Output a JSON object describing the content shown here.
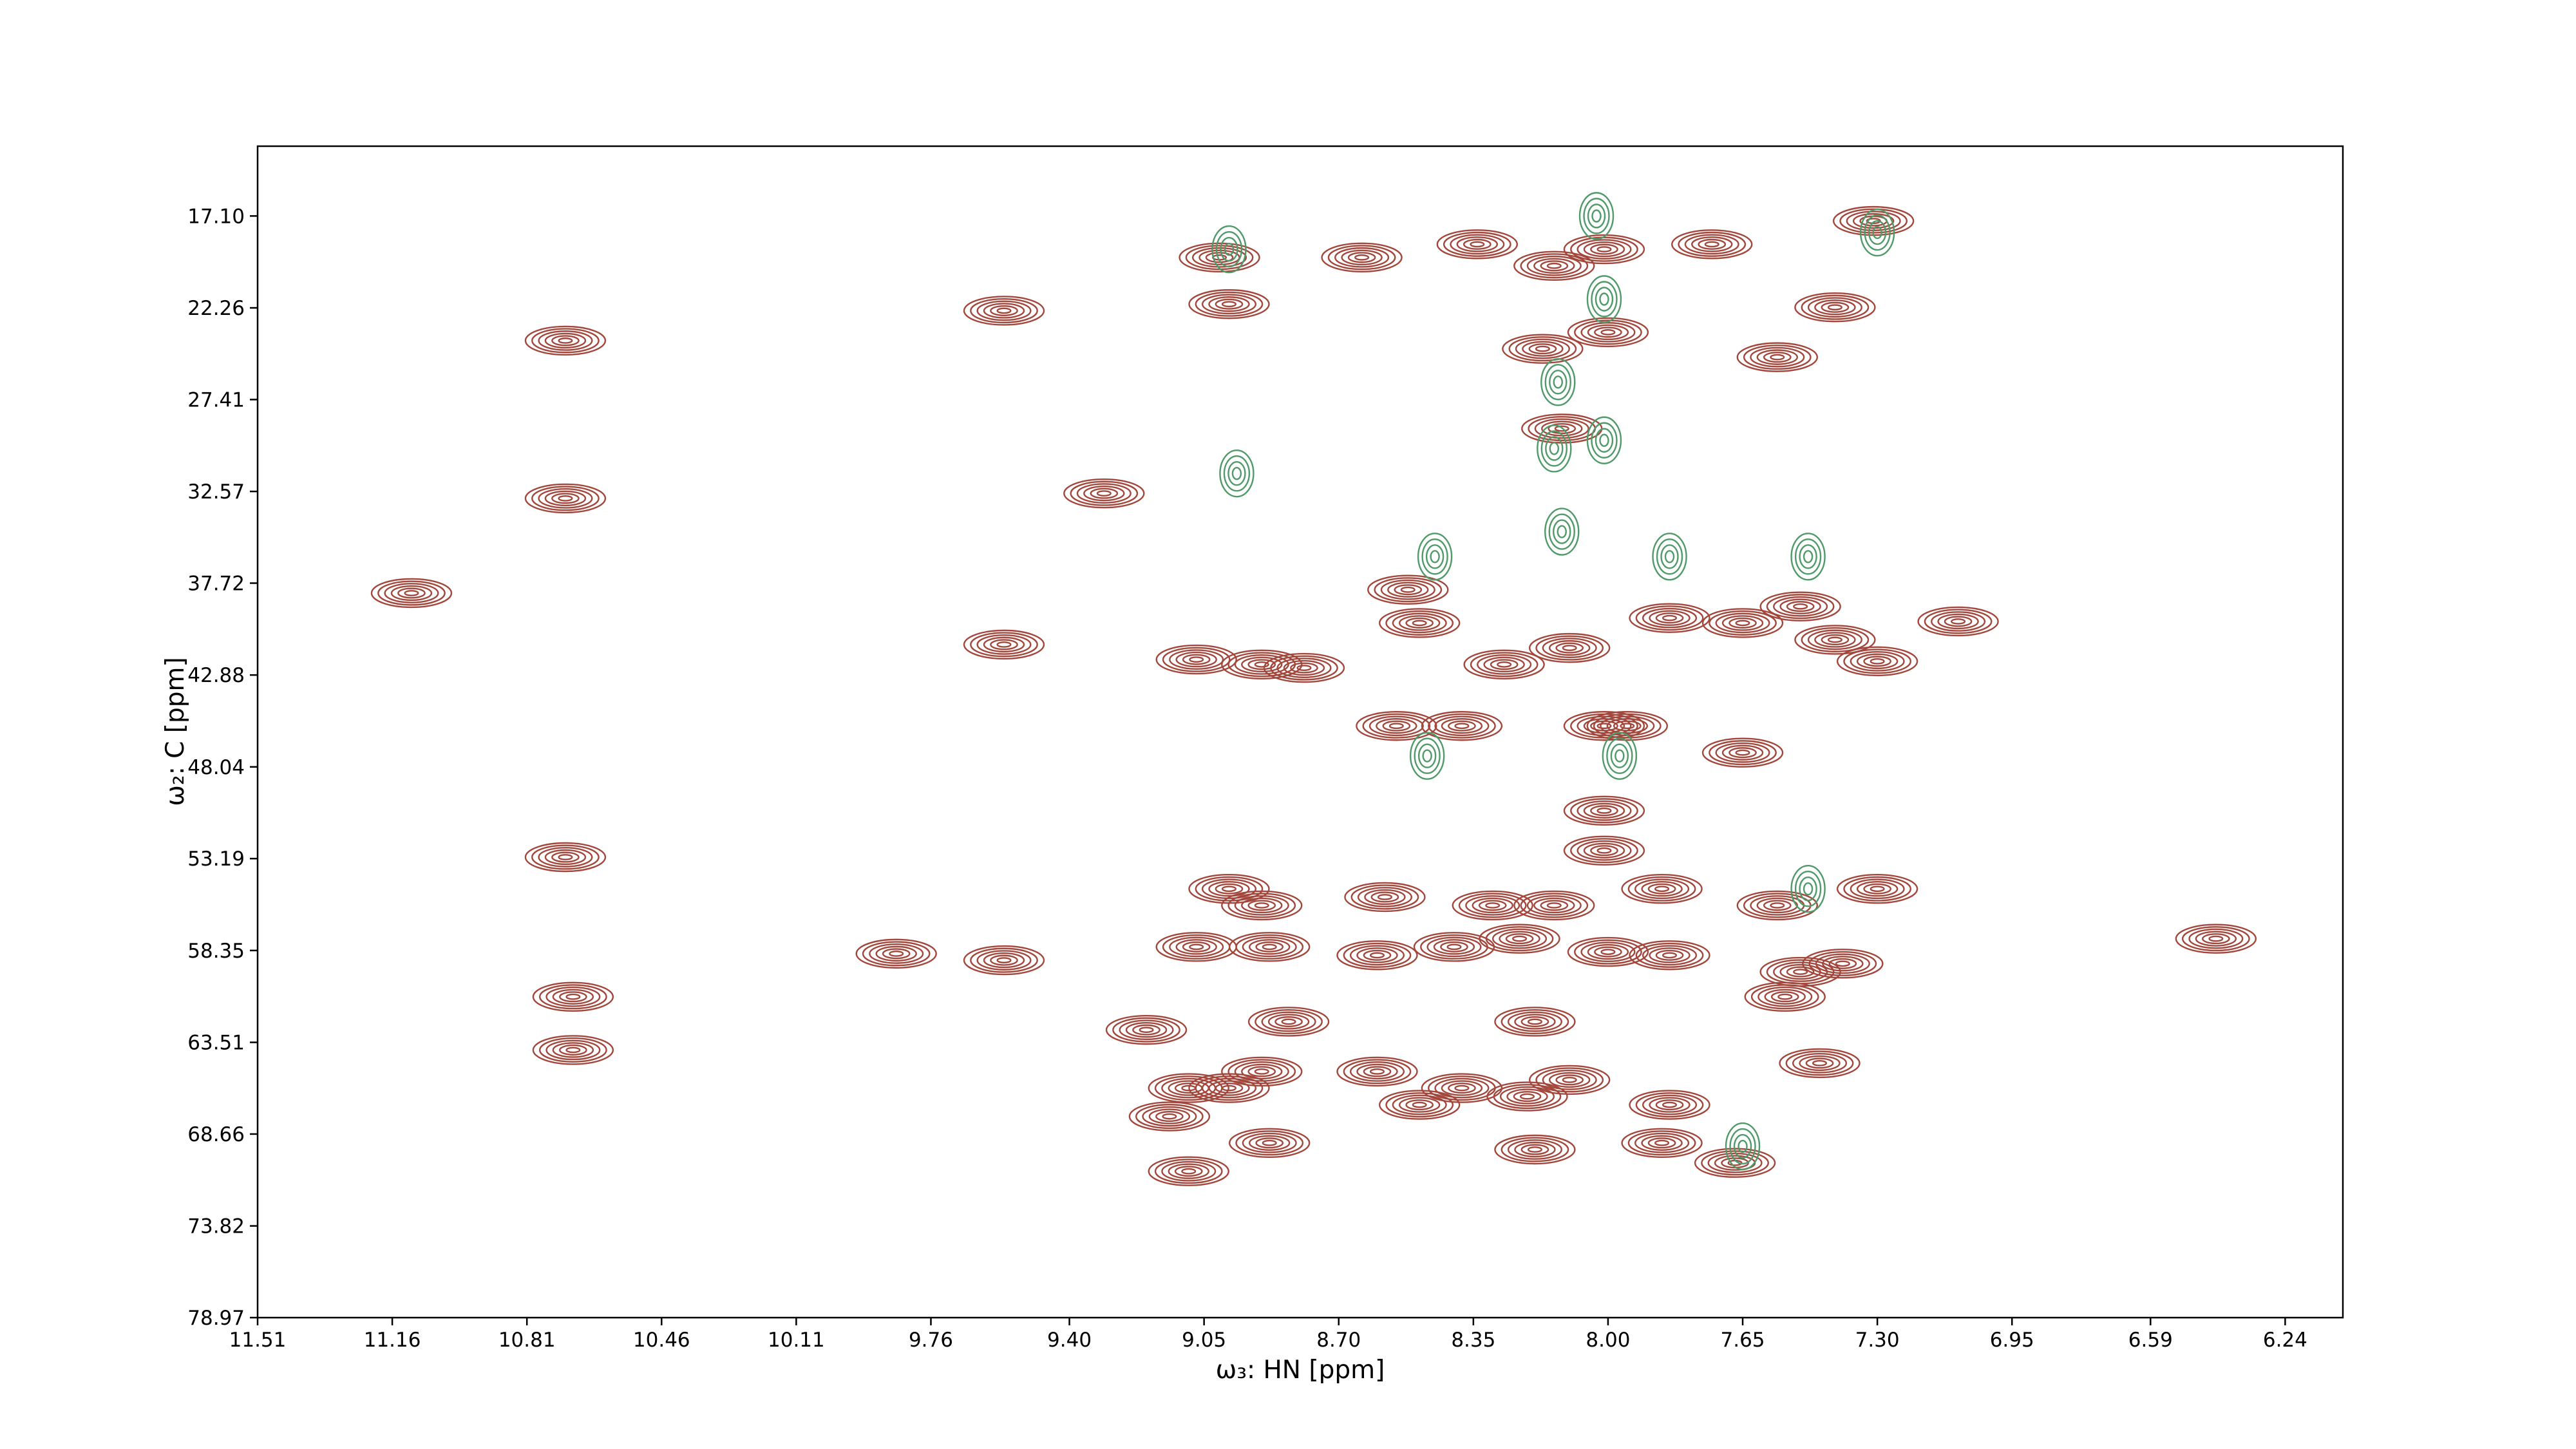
{
  "chart_data": {
    "type": "contour",
    "x_label": "ω₃: HN [ppm]",
    "y_label": "ω₂: C [ppm]",
    "xlim": [
      11.51,
      6.09
    ],
    "ylim": [
      78.97,
      13.18
    ],
    "xticks": [
      11.51,
      11.16,
      10.81,
      10.46,
      10.11,
      9.76,
      {
        "value": 9.4,
        "label": "9.40"
      },
      9.05,
      {
        "value": 8.7,
        "label": "8.70"
      },
      8.35,
      {
        "value": 8.0,
        "label": "8.00"
      },
      7.65,
      {
        "value": 7.3,
        "label": "7.30"
      },
      6.95,
      6.59,
      6.24
    ],
    "yticks": [
      {
        "value": 17.1,
        "label": "17.10"
      },
      22.26,
      27.41,
      32.57,
      37.72,
      42.88,
      48.04,
      53.19,
      58.35,
      63.51,
      68.66,
      73.82,
      78.97
    ],
    "series": [
      {
        "color": "#a3463b",
        "x": [
          10.71,
          10.71,
          10.71,
          10.69,
          10.69,
          9.85,
          9.57,
          9.57,
          9.57,
          9.31,
          9.07,
          8.9,
          8.79,
          9.01,
          8.64,
          8.34,
          8.01,
          7.73,
          7.31,
          8.985,
          8.17,
          8.0,
          7.56,
          7.41,
          8.12,
          8.52,
          8.49,
          8.27,
          8.1,
          7.84,
          7.65,
          7.5,
          7.41,
          7.3,
          7.09,
          8.55,
          8.38,
          8.01,
          7.95,
          7.65,
          8.01,
          8.01,
          8.985,
          8.9,
          8.58,
          8.3,
          8.14,
          7.86,
          7.56,
          7.3,
          8.6,
          8.4,
          8.23,
          8.0,
          7.84,
          7.39,
          7.5,
          9.07,
          8.88,
          9.2,
          8.83,
          8.6,
          8.9,
          8.985,
          9.09,
          8.49,
          8.38,
          8.21,
          8.1,
          8.19,
          7.84,
          7.45,
          7.54,
          9.14,
          9.09,
          8.88,
          8.19,
          7.67,
          7.86,
          6.42,
          11.11,
          8.14
        ],
        "values": [
          24.1,
          32.96,
          53.11,
          60.95,
          63.94,
          58.53,
          58.9,
          41.17,
          22.42,
          32.68,
          42.01,
          42.29,
          42.48,
          19.43,
          19.43,
          18.69,
          18.97,
          18.69,
          17.38,
          22.05,
          24.56,
          23.63,
          25.03,
          22.23,
          29.04,
          38.09,
          39.96,
          42.29,
          41.36,
          39.68,
          39.96,
          39.03,
          40.9,
          42.11,
          39.87,
          45.74,
          45.74,
          45.74,
          45.74,
          47.24,
          50.5,
          52.74,
          54.89,
          55.82,
          55.35,
          55.82,
          55.82,
          54.89,
          55.82,
          54.89,
          58.62,
          58.15,
          57.69,
          58.43,
          58.62,
          59.09,
          59.55,
          58.15,
          58.15,
          62.81,
          62.35,
          65.15,
          65.15,
          66.08,
          66.08,
          67.02,
          66.08,
          66.55,
          65.62,
          62.35,
          67.02,
          64.68,
          60.95,
          67.67,
          70.75,
          69.16,
          69.53,
          70.28,
          69.16,
          57.69,
          38.28,
          19.9
        ]
      },
      {
        "color": "#4f9a68",
        "x": [
          8.985,
          8.13,
          8.14,
          8.12,
          8.01,
          8.47,
          7.97,
          7.48,
          7.84,
          8.45,
          8.965,
          7.3,
          7.65,
          7.48,
          8.01,
          8.03
        ],
        "values": [
          18.97,
          26.43,
          30.16,
          34.83,
          29.7,
          47.42,
          47.42,
          36.23,
          36.23,
          36.23,
          31.56,
          18.03,
          69.35,
          54.89,
          21.77,
          17.1
        ]
      }
    ]
  }
}
